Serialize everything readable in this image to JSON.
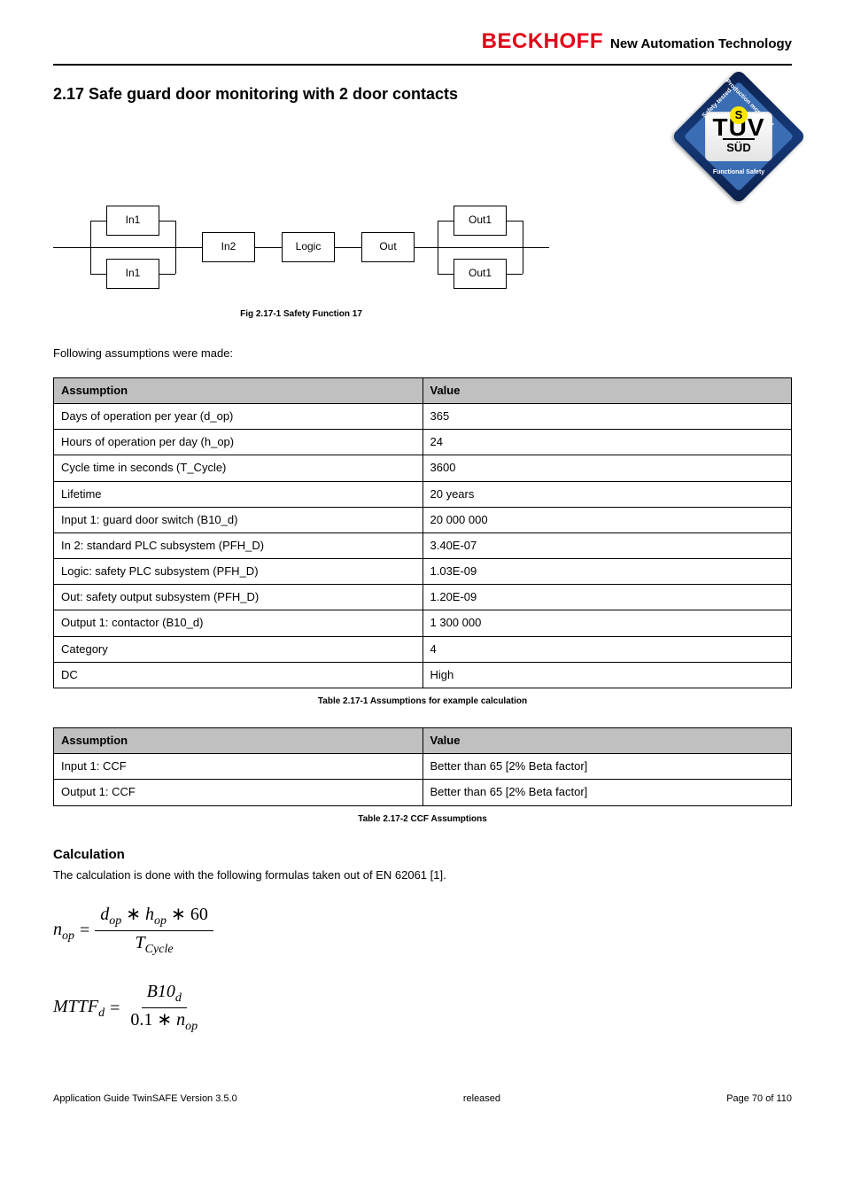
{
  "brand": {
    "name": "BECKHOFF",
    "tagline": "New Automation Technology"
  },
  "section": {
    "number": "2.17",
    "title": " Safe guard door monitoring with 2 door contacts"
  },
  "tuv": {
    "word": "TÜV",
    "sub": "SÜD",
    "mark": "S",
    "tl": "Safety\ntested",
    "tr": "Production\nmonitored",
    "bottom": "Functional\nSafety"
  },
  "diagram": {
    "boxes": {
      "in1_top": "In1",
      "in1_bottom": "In1",
      "in2": "In2",
      "logic": "Logic",
      "out": "Out",
      "out1_top": "Out1",
      "out1_bottom": "Out1"
    },
    "caption": "Fig 2.17-1 Safety Function 17"
  },
  "assumptions": {
    "intro": "Following assumptions were made:",
    "table1": {
      "headers": {
        "left": "Assumption",
        "right": "Value"
      },
      "rows": [
        {
          "left": "Days of operation per year (d_op)",
          "right": "365"
        },
        {
          "left": "Hours of operation per day (h_op)",
          "right": "24"
        },
        {
          "left": "Cycle time in seconds (T_Cycle)",
          "right": "3600"
        },
        {
          "left": "Lifetime",
          "right": "20 years"
        },
        {
          "left": "Input 1: guard door switch (B10_d)",
          "right": "20 000 000"
        },
        {
          "left": "In 2: standard PLC subsystem (PFH_D)",
          "right": "3.40E-07"
        },
        {
          "left": "Logic: safety PLC subsystem (PFH_D)",
          "right": "1.03E-09"
        },
        {
          "left": "Out: safety output subsystem (PFH_D)",
          "right": "1.20E-09"
        },
        {
          "left": "Output 1: contactor (B10_d)",
          "right": "1 300 000"
        },
        {
          "left": "Category",
          "right": "4"
        },
        {
          "left": "DC",
          "right": "High"
        }
      ],
      "caption": "Table 2.17-1 Assumptions for example calculation"
    },
    "table2": {
      "headers": {
        "left": "Assumption",
        "right": "Value"
      },
      "rows": [
        {
          "left": "Input 1: CCF",
          "right": "Better than 65 [2% Beta factor]"
        },
        {
          "left": "Output 1: CCF",
          "right": "Better than 65 [2% Beta factor]"
        }
      ],
      "caption": "Table 2.17-2 CCF Assumptions"
    }
  },
  "calculation": {
    "title": "Calculation",
    "text": "The calculation is done with the following formulas taken out of EN 62061 [1].",
    "formula1": {
      "lhs_var": "n",
      "lhs_sub": "op",
      "num_a": "d",
      "num_a_sub": "op",
      "num_b": "h",
      "num_b_sub": "op",
      "num_const": "60",
      "den_var": "T",
      "den_sub": "Cycle"
    },
    "formula2": {
      "lhs_var": "MTTF",
      "lhs_sub": "d",
      "num_var": "B10",
      "num_sub": "d",
      "den_const": "0.1",
      "den_var": "n",
      "den_sub": "op"
    }
  },
  "footer": {
    "doc": "Application Guide TwinSAFE Version 3.5.0",
    "status": "released",
    "page": "Page 70 of 110"
  },
  "colors": {
    "beckhoff_red": "#e2001a",
    "header_gray": "#c0c0c0",
    "tuv_dark": "#0b1f4a",
    "tuv_mid": "#3a6db3",
    "tuv_yellow": "#ffe600"
  }
}
